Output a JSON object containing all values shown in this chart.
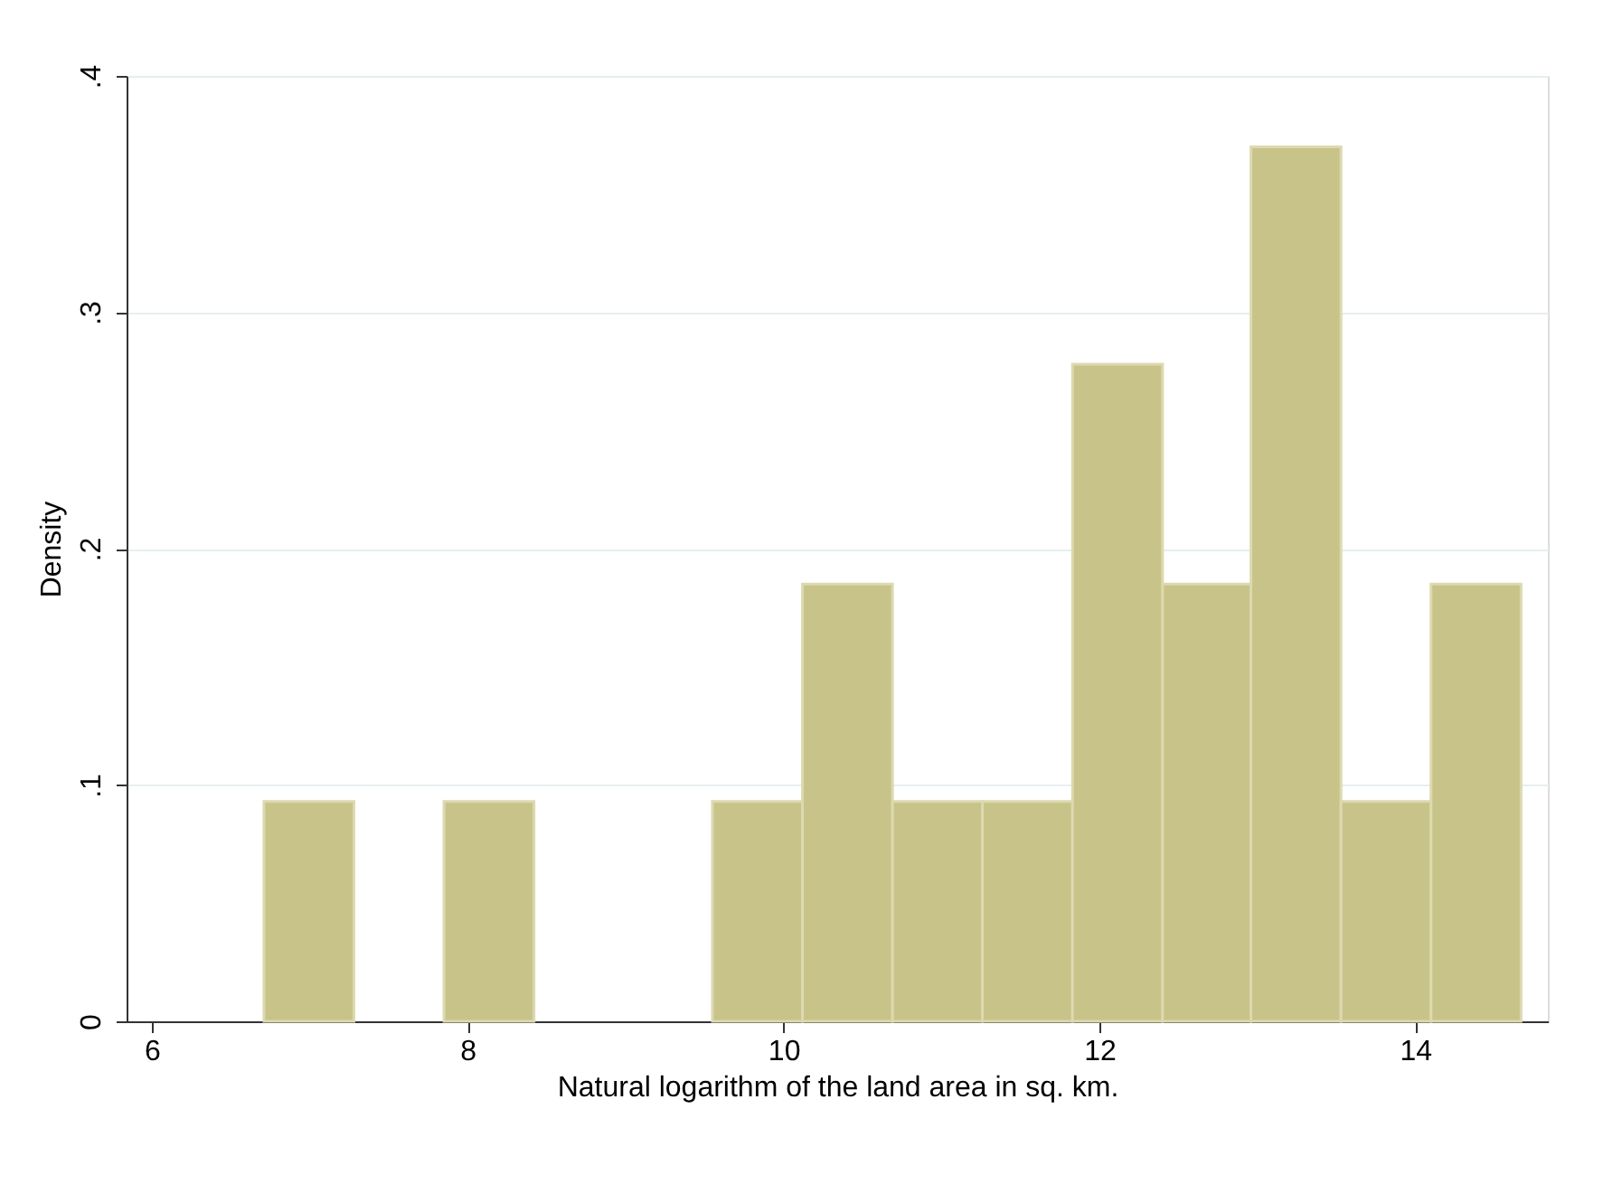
{
  "chart_data": {
    "type": "histogram",
    "xlabel": "Natural logarithm of the land area in sq. km.",
    "ylabel": "Density",
    "bins": [
      6.71,
      7.28,
      7.85,
      8.42,
      9.55,
      10.12,
      10.69,
      11.26,
      11.83,
      12.4,
      12.96,
      13.53,
      14.1,
      14.67
    ],
    "values": [
      0.093,
      0,
      0.093,
      0,
      0.093,
      0.185,
      0.093,
      0.093,
      0.278,
      0.185,
      0.37,
      0.093,
      0.185
    ],
    "color": "#c8c388",
    "xlim": [
      5.84,
      14.84
    ],
    "xticks": [
      6,
      8,
      10,
      12,
      14
    ],
    "ylim": [
      0,
      0.4
    ],
    "yticks": [
      0,
      {
        "value": 0.1,
        "label": ".1"
      },
      {
        "value": 0.2,
        "label": ".2"
      },
      {
        "value": 0.3,
        "label": ".3"
      },
      {
        "value": 0.4,
        "label": ".4"
      }
    ],
    "grid": "y",
    "legend": false
  }
}
